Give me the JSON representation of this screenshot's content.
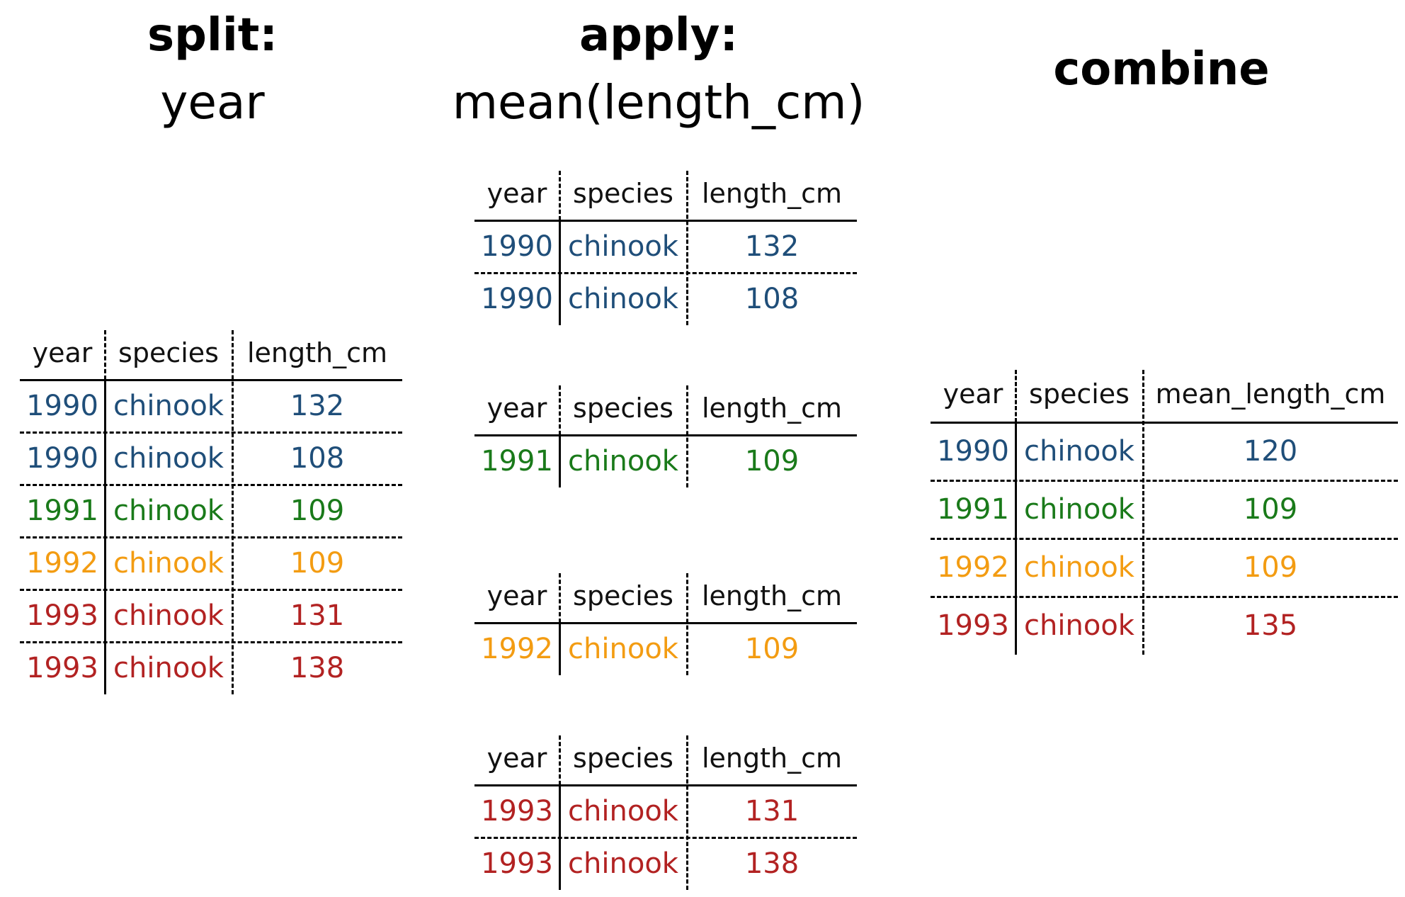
{
  "colors": {
    "1990": "#1f4e79",
    "1991": "#1a7a1a",
    "1992": "#f39c12",
    "1993": "#b22222"
  },
  "split": {
    "title": "split:",
    "subtitle": "year",
    "table": {
      "columns": [
        "year",
        "species",
        "length_cm"
      ],
      "rows": [
        [
          "1990",
          "chinook",
          "132"
        ],
        [
          "1990",
          "chinook",
          "108"
        ],
        [
          "1991",
          "chinook",
          "109"
        ],
        [
          "1992",
          "chinook",
          "109"
        ],
        [
          "1993",
          "chinook",
          "131"
        ],
        [
          "1993",
          "chinook",
          "138"
        ]
      ]
    }
  },
  "apply": {
    "title": "apply:",
    "subtitle": "mean(length_cm)",
    "tables": [
      {
        "columns": [
          "year",
          "species",
          "length_cm"
        ],
        "rows": [
          [
            "1990",
            "chinook",
            "132"
          ],
          [
            "1990",
            "chinook",
            "108"
          ]
        ]
      },
      {
        "columns": [
          "year",
          "species",
          "length_cm"
        ],
        "rows": [
          [
            "1991",
            "chinook",
            "109"
          ]
        ]
      },
      {
        "columns": [
          "year",
          "species",
          "length_cm"
        ],
        "rows": [
          [
            "1992",
            "chinook",
            "109"
          ]
        ]
      },
      {
        "columns": [
          "year",
          "species",
          "length_cm"
        ],
        "rows": [
          [
            "1993",
            "chinook",
            "131"
          ],
          [
            "1993",
            "chinook",
            "138"
          ]
        ]
      }
    ]
  },
  "combine": {
    "title": "combine",
    "table": {
      "columns": [
        "year",
        "species",
        "mean_length_cm"
      ],
      "rows": [
        [
          "1990",
          "chinook",
          "120"
        ],
        [
          "1991",
          "chinook",
          "109"
        ],
        [
          "1992",
          "chinook",
          "109"
        ],
        [
          "1993",
          "chinook",
          "135"
        ]
      ]
    }
  }
}
